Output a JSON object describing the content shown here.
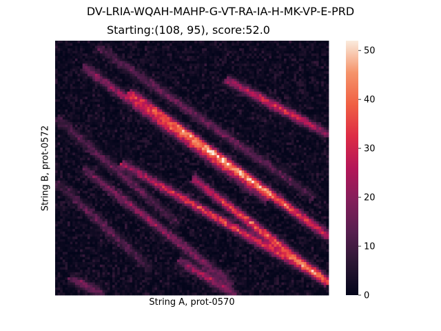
{
  "chart_data": {
    "type": "heatmap",
    "title": "DV-LRIA-WQAH-MAHP-G-VT-RA-IA-H-MK-VP-E-PRD",
    "subtitle": "Starting:(108, 95), score:52.0",
    "xlabel": "String A, prot-0570",
    "ylabel": "String B, prot-0572",
    "colorbar": {
      "vmin": 0,
      "vmax": 52,
      "ticks": [
        0,
        10,
        20,
        30,
        40,
        50
      ],
      "colormap": "rocket"
    },
    "x_ticks": [],
    "y_ticks": [],
    "grid": false,
    "diagonal_bands": [
      {
        "x0": 0.27,
        "y0": 0.2,
        "x1": 1.0,
        "y1": 0.77,
        "peak": 52
      },
      {
        "x0": 0.1,
        "y0": 0.1,
        "x1": 0.78,
        "y1": 0.63,
        "peak": 28
      },
      {
        "x0": 0.24,
        "y0": 0.48,
        "x1": 1.0,
        "y1": 0.95,
        "peak": 38
      },
      {
        "x0": 0.5,
        "y0": 0.54,
        "x1": 1.0,
        "y1": 0.95,
        "peak": 42
      },
      {
        "x0": 0.62,
        "y0": 0.15,
        "x1": 1.0,
        "y1": 0.37,
        "peak": 36
      },
      {
        "x0": 0.1,
        "y0": 0.5,
        "x1": 0.65,
        "y1": 0.96,
        "peak": 22
      },
      {
        "x0": 0.45,
        "y0": 0.86,
        "x1": 0.66,
        "y1": 1.0,
        "peak": 26
      },
      {
        "x0": 0.0,
        "y0": 0.3,
        "x1": 0.45,
        "y1": 0.72,
        "peak": 15
      },
      {
        "x0": 0.05,
        "y0": 0.93,
        "x1": 0.18,
        "y1": 1.0,
        "peak": 20
      },
      {
        "x0": 0.15,
        "y0": 0.02,
        "x1": 0.95,
        "y1": 0.62,
        "peak": 16
      },
      {
        "x0": 0.0,
        "y0": 0.55,
        "x1": 0.35,
        "y1": 0.9,
        "peak": 14
      }
    ]
  }
}
